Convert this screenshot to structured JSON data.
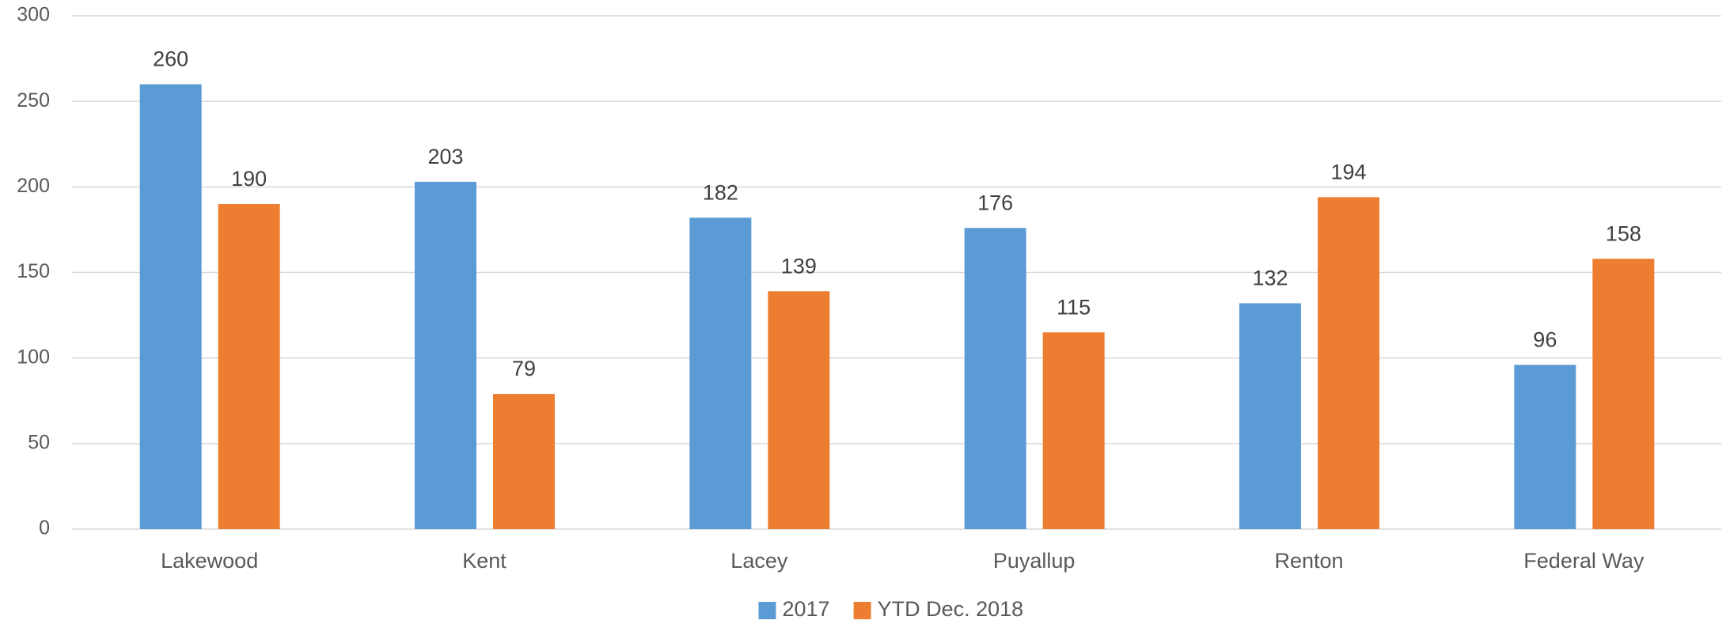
{
  "chart_data": {
    "type": "bar",
    "categories": [
      "Lakewood",
      "Kent",
      "Lacey",
      "Puyallup",
      "Renton",
      "Federal Way"
    ],
    "series": [
      {
        "name": "2017",
        "color": "#5b9bd5",
        "values": [
          260,
          203,
          182,
          176,
          132,
          96
        ]
      },
      {
        "name": "YTD Dec. 2018",
        "color": "#ed7d31",
        "values": [
          190,
          79,
          139,
          115,
          194,
          158
        ]
      }
    ],
    "ylim": [
      0,
      300
    ],
    "yticks": [
      0,
      50,
      100,
      150,
      200,
      250,
      300
    ],
    "grid": true,
    "legend": "bottom"
  }
}
